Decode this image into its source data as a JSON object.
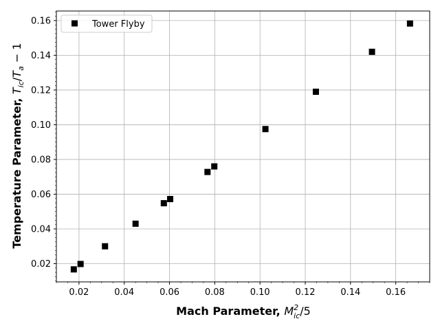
{
  "chart_data": {
    "type": "scatter",
    "title": "",
    "xlabel": {
      "main": "Mach Parameter, ",
      "var": "M",
      "sub": "ic",
      "sup": "2",
      "tail": "/5"
    },
    "ylabel": {
      "main": "Temperature Parameter, ",
      "var": "T",
      "sub": "ic",
      "mid": "/",
      "var2": "T",
      "sub2": "a",
      "tail": " − 1"
    },
    "xlim": [
      0.01,
      0.175
    ],
    "ylim": [
      0.0095,
      0.1655
    ],
    "xticks": [
      0.02,
      0.04,
      0.06,
      0.08,
      0.1,
      0.12,
      0.14,
      0.16
    ],
    "xtick_labels": [
      "0.02",
      "0.04",
      "0.06",
      "0.08",
      "0.10",
      "0.12",
      "0.14",
      "0.16"
    ],
    "yticks": [
      0.02,
      0.04,
      0.06,
      0.08,
      0.1,
      0.12,
      0.14,
      0.16
    ],
    "ytick_labels": [
      "0.02",
      "0.04",
      "0.06",
      "0.08",
      "0.10",
      "0.12",
      "0.14",
      "0.16"
    ],
    "grid": true,
    "legend_position": "top-left",
    "series": [
      {
        "name": "Tower Flyby",
        "marker": "square",
        "color": "#000000",
        "x": [
          0.0177,
          0.0207,
          0.0315,
          0.045,
          0.0575,
          0.0603,
          0.0768,
          0.0798,
          0.1024,
          0.1247,
          0.1495,
          0.1663
        ],
        "y": [
          0.0167,
          0.0198,
          0.03,
          0.043,
          0.0548,
          0.0572,
          0.0728,
          0.076,
          0.0975,
          0.119,
          0.142,
          0.1583
        ]
      }
    ]
  }
}
